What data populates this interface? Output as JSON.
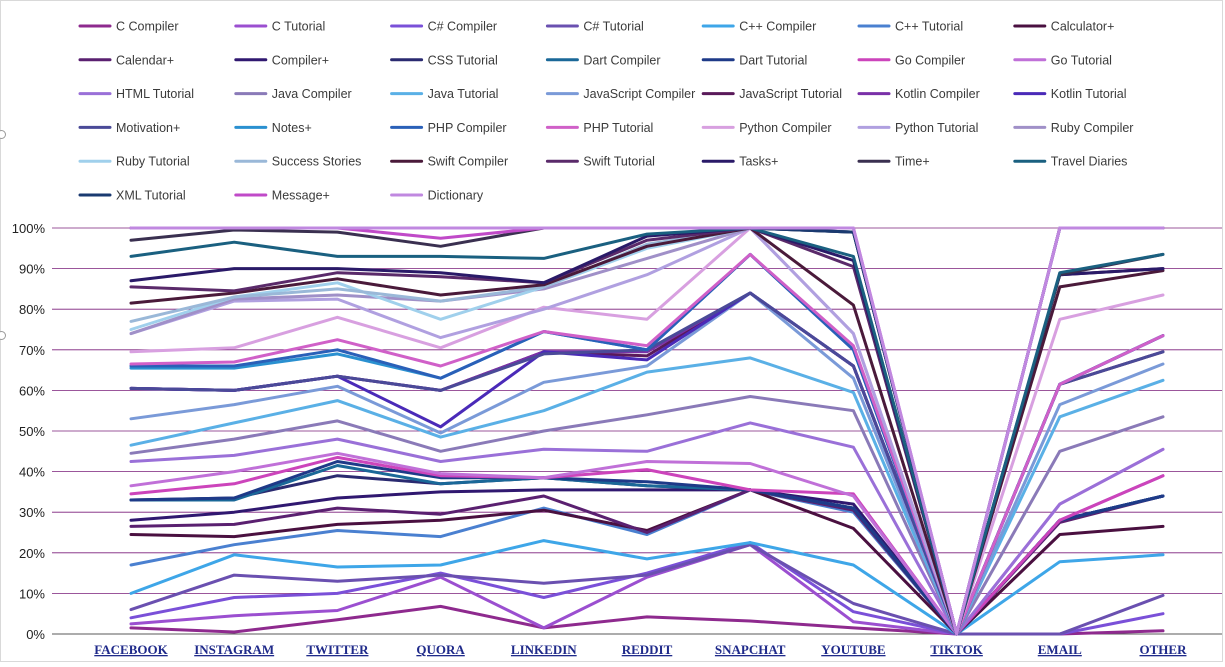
{
  "chart_data": {
    "type": "line",
    "title": "",
    "xlabel": "",
    "ylabel": "",
    "ylim": [
      0,
      100
    ],
    "yticks": [
      0,
      10,
      20,
      30,
      40,
      50,
      60,
      70,
      80,
      90,
      100
    ],
    "ytick_labels": [
      "0%",
      "10%",
      "20%",
      "30%",
      "40%",
      "50%",
      "60%",
      "70%",
      "80%",
      "90%",
      "100%"
    ],
    "grid": "horizontal",
    "grid_color": "#7a1f7a",
    "legend_position": "top",
    "categories": [
      "FACEBOOK",
      "INSTAGRAM",
      "TWITTER",
      "QUORA",
      "LINKEDIN",
      "REDDIT",
      "SNAPCHAT",
      "YOUTUBE",
      "TIKTOK",
      "EMAIL",
      "OTHER"
    ],
    "series": [
      {
        "name": "C Compiler",
        "color": "#8e2a8e",
        "values": [
          1.5,
          0.5,
          3.5,
          6.8,
          1.5,
          4.2,
          3.2,
          1.5,
          0,
          0,
          0.8
        ]
      },
      {
        "name": "C Tutorial",
        "color": "#9b4fd0",
        "values": [
          2.5,
          4.5,
          5.8,
          14,
          1.5,
          14,
          22,
          3,
          0,
          28,
          39
        ]
      },
      {
        "name": "C# Compiler",
        "color": "#7a50d8",
        "values": [
          4,
          9,
          10,
          15,
          9,
          15,
          22.5,
          5.5,
          0,
          0,
          5
        ]
      },
      {
        "name": "C# Tutorial",
        "color": "#6a50b0",
        "values": [
          6,
          14.5,
          13,
          14.5,
          12.5,
          14.5,
          22,
          7.5,
          0,
          0,
          9.5
        ]
      },
      {
        "name": "C++ Compiler",
        "color": "#3ea6e8",
        "values": [
          10,
          19.5,
          16.5,
          17,
          23,
          18.5,
          22.5,
          17,
          0,
          17.8,
          19.5
        ]
      },
      {
        "name": "C++ Tutorial",
        "color": "#4a80d0",
        "values": [
          17,
          22,
          25.5,
          24,
          31,
          24.5,
          35.5,
          30,
          0,
          28,
          34
        ]
      },
      {
        "name": "Calculator+",
        "color": "#4a1040",
        "values": [
          24.5,
          24,
          27,
          28,
          30.5,
          25.5,
          35.5,
          26,
          0,
          24.5,
          26.5
        ]
      },
      {
        "name": "Calendar+",
        "color": "#5a2070",
        "values": [
          26.5,
          27,
          31,
          29.5,
          34,
          25,
          35.5,
          30.5,
          0,
          27.5,
          34
        ]
      },
      {
        "name": "Compiler+",
        "color": "#301870",
        "values": [
          28,
          30,
          33.5,
          35,
          35.5,
          35.5,
          35.5,
          32,
          0,
          28,
          34
        ]
      },
      {
        "name": "CSS Tutorial",
        "color": "#2a2a70",
        "values": [
          33,
          33.5,
          39,
          37,
          38.5,
          36.5,
          35.5,
          31,
          0,
          28,
          34
        ]
      },
      {
        "name": "Dart Compiler",
        "color": "#1a6898",
        "values": [
          33,
          33,
          41.5,
          37,
          38.5,
          36.5,
          35.5,
          31,
          0,
          28,
          34
        ]
      },
      {
        "name": "Dart Tutorial",
        "color": "#1e3a88",
        "values": [
          33,
          33.5,
          42.5,
          38.5,
          38.5,
          37.5,
          35.5,
          31,
          0,
          28,
          34
        ]
      },
      {
        "name": "Go Compiler",
        "color": "#cc44bb",
        "values": [
          34.5,
          37,
          43.5,
          39,
          38.5,
          40.5,
          35.5,
          34.5,
          0,
          28,
          39
        ]
      },
      {
        "name": "Go Tutorial",
        "color": "#c070d8",
        "values": [
          36.5,
          40,
          44.5,
          39.5,
          38.5,
          42.5,
          42,
          34,
          0,
          32,
          45.5
        ]
      },
      {
        "name": "HTML Tutorial",
        "color": "#9a70d8",
        "values": [
          42.5,
          44,
          48,
          42.5,
          45.5,
          45,
          52,
          46,
          0,
          32,
          45.5
        ]
      },
      {
        "name": "Java Compiler",
        "color": "#8a7ab8",
        "values": [
          44.5,
          48,
          52.5,
          45,
          50,
          54,
          58.5,
          55,
          0,
          45,
          53.5
        ]
      },
      {
        "name": "Java Tutorial",
        "color": "#5ab0e6",
        "values": [
          46.5,
          52,
          57.5,
          48.5,
          55,
          64.5,
          68,
          59.5,
          0,
          53.5,
          62.5
        ]
      },
      {
        "name": "JavaScript Compiler",
        "color": "#7a9ad8",
        "values": [
          53,
          56.5,
          61,
          49.5,
          62,
          66,
          84,
          63,
          0,
          56.5,
          66.5
        ]
      },
      {
        "name": "JavaScript Tutorial",
        "color": "#5a1a5a",
        "values": [
          60.5,
          60,
          63.5,
          60,
          69.5,
          68.5,
          84,
          66,
          0,
          61.5,
          69.5
        ]
      },
      {
        "name": "Kotlin Compiler",
        "color": "#7a30a8",
        "values": [
          60.5,
          60,
          63.5,
          60,
          69.5,
          69.5,
          84,
          66,
          0,
          61.5,
          73.5
        ]
      },
      {
        "name": "Kotlin Tutorial",
        "color": "#4a2ab8",
        "values": [
          60.5,
          60,
          63.5,
          51,
          69.5,
          67.5,
          84,
          66,
          0,
          61.5,
          73.5
        ]
      },
      {
        "name": "Motivation+",
        "color": "#4a4a98",
        "values": [
          60.5,
          60,
          63.5,
          60,
          69,
          70,
          84,
          66,
          0,
          61.5,
          69.5
        ]
      },
      {
        "name": "Notes+",
        "color": "#2a90d0",
        "values": [
          65.5,
          65.5,
          69,
          63,
          74.5,
          70,
          93.5,
          70,
          0,
          61.5,
          73.5
        ]
      },
      {
        "name": "PHP Compiler",
        "color": "#2a60b8",
        "values": [
          66,
          66,
          70,
          63,
          74.5,
          70,
          93.5,
          70,
          0,
          61.5,
          73.5
        ]
      },
      {
        "name": "PHP Tutorial",
        "color": "#d060c8",
        "values": [
          66.5,
          67,
          72.5,
          66,
          74.5,
          71,
          93.5,
          71,
          0,
          61.5,
          73.5
        ]
      },
      {
        "name": "Python Compiler",
        "color": "#d8a0e0",
        "values": [
          69.5,
          70.5,
          78,
          70.5,
          80.5,
          77.5,
          100,
          74,
          0,
          77.5,
          83.5
        ]
      },
      {
        "name": "Python Tutorial",
        "color": "#b0a0e0",
        "values": [
          74,
          82,
          82.5,
          73,
          80,
          88.5,
          100,
          74,
          0,
          100,
          100
        ]
      },
      {
        "name": "Ruby Compiler",
        "color": "#a090c8",
        "values": [
          74,
          82.5,
          83.5,
          82,
          85,
          92.5,
          100,
          99,
          0,
          100,
          100
        ]
      },
      {
        "name": "Ruby Tutorial",
        "color": "#a0d0ec",
        "values": [
          75,
          83,
          86.5,
          77.5,
          85.5,
          95,
          100,
          99,
          0,
          100,
          100
        ]
      },
      {
        "name": "Success Stories",
        "color": "#9ab8d8",
        "values": [
          77,
          83,
          85,
          82,
          85.5,
          96,
          100,
          99,
          0,
          100,
          100
        ]
      },
      {
        "name": "Swift Compiler",
        "color": "#4a1a3a",
        "values": [
          81.5,
          84,
          87.5,
          83.5,
          86,
          95.5,
          100,
          81,
          0,
          85.5,
          89.5
        ]
      },
      {
        "name": "Swift Tutorial",
        "color": "#5a2a6a",
        "values": [
          85.5,
          84.5,
          89,
          88,
          86.5,
          97,
          100,
          90.5,
          0,
          88.5,
          90
        ]
      },
      {
        "name": "Tasks+",
        "color": "#2a1a68",
        "values": [
          87,
          90,
          90,
          89,
          86.5,
          98,
          100,
          92,
          0,
          88.5,
          90
        ]
      },
      {
        "name": "Time+",
        "color": "#3a3050",
        "values": [
          97,
          99.5,
          99,
          95.5,
          100,
          100,
          100,
          99,
          0,
          88.5,
          93.5
        ]
      },
      {
        "name": "Travel Diaries",
        "color": "#1a6080",
        "values": [
          93,
          96.5,
          93,
          93,
          92.5,
          98.5,
          100,
          93,
          0,
          89,
          93.5
        ]
      },
      {
        "name": "XML Tutorial",
        "color": "#1a3a70",
        "values": [
          100,
          100,
          100,
          100,
          100,
          100,
          100,
          99,
          0,
          100,
          100
        ]
      },
      {
        "name": "Message+",
        "color": "#c04ac8",
        "values": [
          100,
          100,
          100,
          97.5,
          100,
          100,
          100,
          100,
          0,
          100,
          100
        ]
      },
      {
        "name": "Dictionary",
        "color": "#c088e0",
        "values": [
          100,
          100,
          100,
          100,
          100,
          100,
          100,
          100,
          0,
          100,
          100
        ]
      }
    ]
  }
}
